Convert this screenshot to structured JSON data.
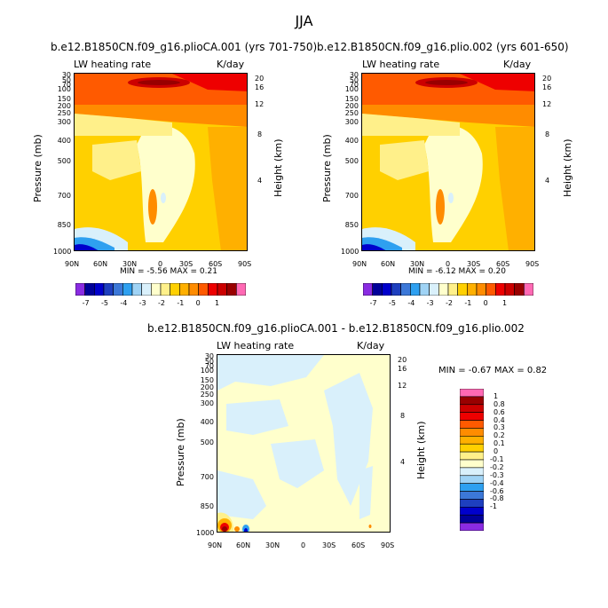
{
  "main_title": "JJA",
  "colors": {
    "scale": [
      "#8a2be2",
      "#000099",
      "#0000cc",
      "#1e3fbf",
      "#3c78d8",
      "#2ea0f0",
      "#9fd3f5",
      "#d9f0fb",
      "#ffffcc",
      "#fff08a",
      "#ffd000",
      "#ffb000",
      "#ff8c00",
      "#ff5a00",
      "#ee0000",
      "#cc0000",
      "#990000",
      "#ff69b4"
    ],
    "diff_scale": [
      "#8a2be2",
      "#000099",
      "#0000cc",
      "#1e3fbf",
      "#3c78d8",
      "#2ea0f0",
      "#9fd3f5",
      "#d9f0fb",
      "#ffffcc",
      "#fff08a",
      "#ffd000",
      "#ffb000",
      "#ff8c00",
      "#ff5a00",
      "#ee0000",
      "#cc0000",
      "#990000",
      "#ff69b4"
    ]
  },
  "panels": [
    {
      "title": "b.e12.B1850CN.f09_g16.plioCA.001 (yrs 701-750)",
      "left_label": "LW heating rate",
      "right_label": "K/day",
      "y_title": "Pressure (mb)",
      "y2_title": "Height (km)",
      "minmax_text": "MIN =   -5.56  MAX =    0.21"
    },
    {
      "title": "b.e12.B1850CN.f09_g16.plio.002 (yrs 601-650)",
      "left_label": "LW heating rate",
      "right_label": "K/day",
      "y_title": "Pressure (mb)",
      "y2_title": "Height (km)",
      "minmax_text": "MIN =   -6.12  MAX =    0.20"
    },
    {
      "title": "b.e12.B1850CN.f09_g16.plioCA.001 - b.e12.B1850CN.f09_g16.plio.002",
      "left_label": "LW heating rate",
      "right_label": "K/day",
      "y_title": "Pressure (mb)",
      "y2_title": "Height (km)",
      "minmax_text": "MIN =   -0.67   MAX =    0.82"
    }
  ],
  "chart_data": {
    "type": "heatmap",
    "x_ticks": [
      "90N",
      "60N",
      "30N",
      "0",
      "30S",
      "60S",
      "90S"
    ],
    "y_ticks": [
      "30",
      "50",
      "70",
      "100",
      "150",
      "200",
      "250",
      "300",
      "400",
      "500",
      "700",
      "850",
      "1000"
    ],
    "y2_ticks": [
      "20",
      "16",
      "12",
      "8",
      "4"
    ],
    "colorbar_labels": [
      "-7",
      "-5",
      "-4",
      "-3",
      "-2",
      "-1",
      "0",
      "1"
    ],
    "diff_colorbar_labels": [
      "1",
      "0.8",
      "0.6",
      "0.4",
      "0.3",
      "0.2",
      "0.1",
      "0",
      "-0.1",
      "-0.2",
      "-0.3",
      "-0.4",
      "-0.6",
      "-0.8",
      "-1"
    ]
  }
}
